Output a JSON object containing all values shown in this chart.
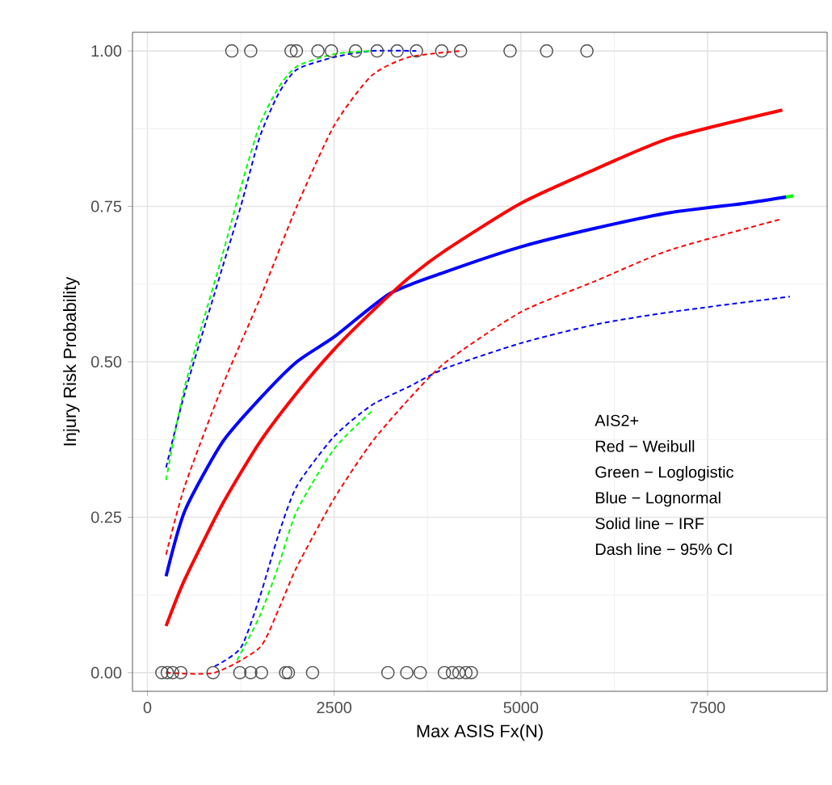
{
  "chart_data": {
    "type": "line",
    "xlabel": "Max ASIS Fx(N)",
    "ylabel": "Injury Risk Probability",
    "xlim": [
      -200,
      9100
    ],
    "ylim": [
      -0.03,
      1.03
    ],
    "xticks": [
      0,
      2500,
      5000,
      7500
    ],
    "yticks": [
      {
        "value": 0,
        "label": "0.00"
      },
      {
        "value": 0.25,
        "label": "0.25"
      },
      {
        "value": 0.5,
        "label": "0.50"
      },
      {
        "value": 0.75,
        "label": "0.75"
      },
      {
        "value": 1,
        "label": "1.00"
      }
    ],
    "grid": true,
    "annotations": [
      "AIS2+",
      "Red − Weibull",
      "Green − Loglogistic",
      "Blue − Lognormal",
      "Solid line −  IRF",
      "Dash line − 95% CI"
    ],
    "series": [
      {
        "line_style": "solid",
        "color": "#00ff00",
        "x": [
          8500,
          8650
        ],
        "values": [
          0.764,
          0.767
        ]
      },
      {
        "line_style": "solid",
        "color": "#0000ff",
        "x": [
          250,
          500,
          1000,
          1500,
          2000,
          2500,
          3250,
          4000,
          5000,
          6000,
          7000,
          8000,
          8550
        ],
        "values": [
          0.155,
          0.26,
          0.37,
          0.44,
          0.5,
          0.54,
          0.61,
          0.645,
          0.685,
          0.715,
          0.74,
          0.755,
          0.765
        ]
      },
      {
        "line_style": "solid",
        "color": "#ff0000",
        "x": [
          250,
          500,
          1000,
          1500,
          2000,
          2500,
          3000,
          3500,
          4000,
          5000,
          6000,
          7000,
          8500
        ],
        "values": [
          0.075,
          0.15,
          0.27,
          0.37,
          0.45,
          0.52,
          0.58,
          0.635,
          0.68,
          0.755,
          0.81,
          0.86,
          0.905
        ]
      },
      {
        "line_style": "dashed",
        "color": "#0000ff",
        "x": [
          250,
          500,
          1000,
          1250,
          1500,
          1750,
          2000,
          2500,
          3000,
          3600
        ],
        "values": [
          0.33,
          0.45,
          0.65,
          0.75,
          0.86,
          0.93,
          0.97,
          0.99,
          1.0,
          1.0
        ]
      },
      {
        "line_style": "dashed",
        "color": "#00ff00",
        "x": [
          250,
          500,
          1000,
          1250,
          1500,
          1750,
          2000,
          2500,
          3000
        ],
        "values": [
          0.31,
          0.46,
          0.67,
          0.78,
          0.88,
          0.94,
          0.975,
          0.995,
          1.0
        ]
      },
      {
        "line_style": "dashed",
        "color": "#ff0000",
        "x": [
          250,
          500,
          1000,
          1500,
          2000,
          2500,
          3000,
          3500,
          4200
        ],
        "values": [
          0.19,
          0.3,
          0.46,
          0.6,
          0.75,
          0.88,
          0.96,
          0.99,
          1.0
        ]
      },
      {
        "line_style": "dashed",
        "color": "#00ff00",
        "x": [
          1200,
          1500,
          1750,
          2000,
          2500,
          3000
        ],
        "values": [
          0.02,
          0.09,
          0.17,
          0.26,
          0.36,
          0.42
        ]
      },
      {
        "line_style": "dashed",
        "color": "#0000ff",
        "x": [
          900,
          1250,
          1500,
          1750,
          2000,
          2500,
          3000,
          3500,
          4000,
          5000,
          6000,
          7000,
          8600
        ],
        "values": [
          0.01,
          0.04,
          0.12,
          0.22,
          0.3,
          0.38,
          0.43,
          0.46,
          0.49,
          0.53,
          0.56,
          0.58,
          0.605
        ]
      },
      {
        "line_style": "dashed",
        "color": "#ff0000",
        "x": [
          250,
          900,
          1500,
          1750,
          2000,
          2500,
          3000,
          3500,
          4000,
          5000,
          6000,
          7000,
          8500
        ],
        "values": [
          0.0,
          0.0,
          0.04,
          0.1,
          0.17,
          0.28,
          0.37,
          0.44,
          0.5,
          0.58,
          0.63,
          0.68,
          0.73
        ]
      },
      {
        "type": "scatter",
        "marker": "circle",
        "color": "#4d4d4d",
        "x": [
          1130,
          1383,
          1923,
          1995,
          2283,
          2463,
          2787,
          3075,
          3343,
          3602,
          3940,
          4192,
          4855,
          5344,
          5884
        ],
        "values": [
          1,
          1,
          1,
          1,
          1,
          1,
          1,
          1,
          1,
          1,
          1,
          1,
          1,
          1,
          1
        ]
      },
      {
        "type": "scatter",
        "marker": "circle",
        "color": "#4d4d4d",
        "x": [
          194,
          266,
          338,
          447,
          879,
          1238,
          1383,
          1527,
          1851,
          1887,
          2211,
          3220,
          3472,
          3652,
          3976,
          4084,
          4170,
          4264,
          4336
        ],
        "values": [
          0,
          0,
          0,
          0,
          0,
          0,
          0,
          0,
          0,
          0,
          0,
          0,
          0,
          0,
          0,
          0,
          0,
          0,
          0
        ]
      }
    ]
  }
}
